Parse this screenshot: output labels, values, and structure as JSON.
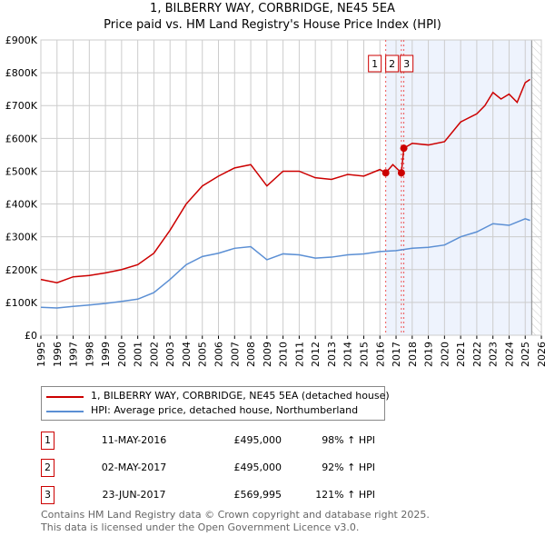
{
  "chart_data": {
    "type": "line",
    "title": "1, BILBERRY WAY, CORBRIDGE, NE45 5EA",
    "subtitle": "Price paid vs. HM Land Registry's House Price Index (HPI)",
    "xlim": [
      1995,
      2026
    ],
    "ylim": [
      0,
      900000
    ],
    "x_ticks": [
      "1995",
      "1996",
      "1997",
      "1998",
      "1999",
      "2000",
      "2001",
      "2002",
      "2003",
      "2004",
      "2005",
      "2006",
      "2007",
      "2008",
      "2009",
      "2010",
      "2011",
      "2012",
      "2013",
      "2014",
      "2015",
      "2016",
      "2017",
      "2018",
      "2019",
      "2020",
      "2021",
      "2022",
      "2023",
      "2024",
      "2025",
      "2026"
    ],
    "y_ticks": [
      {
        "v": 0,
        "l": "£0"
      },
      {
        "v": 100000,
        "l": "£100K"
      },
      {
        "v": 200000,
        "l": "£200K"
      },
      {
        "v": 300000,
        "l": "£300K"
      },
      {
        "v": 400000,
        "l": "£400K"
      },
      {
        "v": 500000,
        "l": "£500K"
      },
      {
        "v": 600000,
        "l": "£600K"
      },
      {
        "v": 700000,
        "l": "£700K"
      },
      {
        "v": 800000,
        "l": "£800K"
      },
      {
        "v": 900000,
        "l": "£900K"
      }
    ],
    "grid": true,
    "series": [
      {
        "name": "1, BILBERRY WAY, CORBRIDGE, NE45 5EA (detached house)",
        "color": "#cc0000",
        "x": [
          1995,
          1996,
          1997,
          1998,
          1999,
          2000,
          2001,
          2002,
          2003,
          2004,
          2005,
          2006,
          2007,
          2008,
          2009,
          2010,
          2011,
          2012,
          2013,
          2014,
          2015,
          2016,
          2016.36,
          2016.8,
          2017.33,
          2017.48,
          2018,
          2019,
          2020,
          2021,
          2022,
          2022.5,
          2023,
          2023.5,
          2024,
          2024.5,
          2025,
          2025.3
        ],
        "y": [
          170000,
          160000,
          178000,
          182000,
          190000,
          200000,
          215000,
          250000,
          320000,
          400000,
          455000,
          485000,
          510000,
          520000,
          455000,
          500000,
          500000,
          480000,
          475000,
          490000,
          485000,
          505000,
          495000,
          520000,
          495000,
          569995,
          585000,
          580000,
          590000,
          650000,
          675000,
          700000,
          740000,
          720000,
          735000,
          710000,
          770000,
          780000
        ]
      },
      {
        "name": "HPI: Average price, detached house, Northumberland",
        "color": "#5b8fd4",
        "x": [
          1995,
          1996,
          1997,
          1998,
          1999,
          2000,
          2001,
          2002,
          2003,
          2004,
          2005,
          2006,
          2007,
          2008,
          2009,
          2010,
          2011,
          2012,
          2013,
          2014,
          2015,
          2016,
          2017,
          2018,
          2019,
          2020,
          2021,
          2022,
          2023,
          2024,
          2025,
          2025.3
        ],
        "y": [
          85000,
          83000,
          88000,
          92000,
          97000,
          103000,
          110000,
          130000,
          170000,
          215000,
          240000,
          250000,
          265000,
          270000,
          230000,
          248000,
          245000,
          235000,
          238000,
          245000,
          248000,
          255000,
          258000,
          265000,
          268000,
          275000,
          300000,
          315000,
          340000,
          335000,
          355000,
          350000
        ]
      }
    ],
    "sales": [
      {
        "label": "1",
        "x": 2016.36,
        "price": 495000,
        "date": "11-MAY-2016",
        "price_text": "£495,000",
        "hpi": "98% ↑ HPI"
      },
      {
        "label": "2",
        "x": 2017.33,
        "price": 495000,
        "date": "02-MAY-2017",
        "price_text": "£495,000",
        "hpi": "92% ↑ HPI"
      },
      {
        "label": "3",
        "x": 2017.48,
        "price": 569995,
        "date": "23-JUN-2017",
        "price_text": "£569,995",
        "hpi": "121% ↑ HPI"
      }
    ],
    "shade_from": 2016.36,
    "forecast_from": 2025.4
  },
  "legend": {
    "property": "1, BILBERRY WAY, CORBRIDGE, NE45 5EA (detached house)",
    "hpi": "HPI: Average price, detached house, Northumberland"
  },
  "footer": {
    "line1": "Contains HM Land Registry data © Crown copyright and database right 2025.",
    "line2": "This data is licensed under the Open Government Licence v3.0."
  }
}
